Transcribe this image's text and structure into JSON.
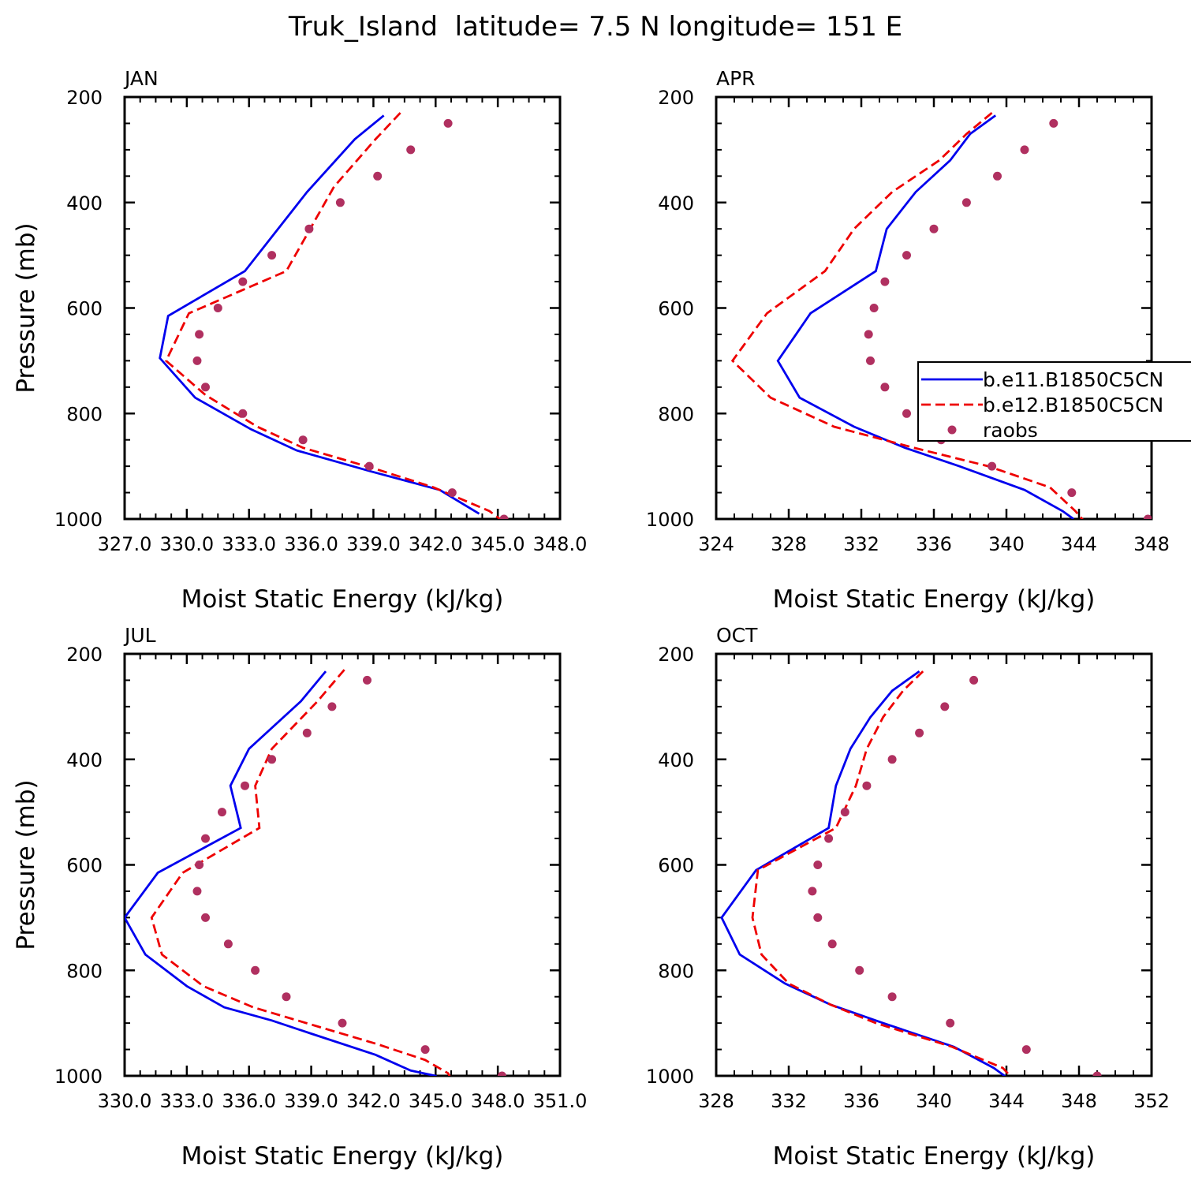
{
  "figure_title": "Truk_Island  latitude= 7.5 N longitude= 151 E",
  "colors": {
    "series_1": "#0000ee",
    "series_2": "#ee0000",
    "raobs": "#b03060",
    "axis": "#000000"
  },
  "legend": {
    "placement": "overlapping right edge of APR panel",
    "entries": [
      {
        "label": "b.e11.B1850C5CN",
        "style": "solid",
        "color": "#0000ee"
      },
      {
        "label": "b.e12.B1850C5CN",
        "style": "dashed",
        "color": "#ee0000"
      },
      {
        "label": "raobs",
        "style": "marker",
        "color": "#b03060"
      }
    ]
  },
  "chart_data": [
    {
      "type": "line",
      "panel": "JAN",
      "xlabel": "Moist Static Energy (kJ/kg)",
      "ylabel": "Pressure (mb)",
      "xlim": [
        327,
        348
      ],
      "ylim": [
        1000,
        200
      ],
      "xticks": [
        "327.0",
        "330.0",
        "333.0",
        "336.0",
        "339.0",
        "342.0",
        "345.0",
        "348.0"
      ],
      "xtick_values": [
        327,
        330,
        333,
        336,
        339,
        342,
        345,
        348
      ],
      "yticks": [
        "200",
        "400",
        "600",
        "800",
        "1000"
      ],
      "ytick_values": [
        200,
        400,
        600,
        800,
        1000
      ],
      "series": [
        {
          "name": "b.e11.B1850C5CN",
          "style": "solid",
          "x": [
            339.5,
            338.1,
            335.8,
            332.8,
            329.1,
            328.7,
            330.4,
            333.1,
            335.3,
            338.9,
            342.2,
            344.1
          ],
          "y": [
            235,
            280,
            380,
            530,
            615,
            695,
            770,
            830,
            870,
            910,
            945,
            990
          ]
        },
        {
          "name": "b.e12.B1850C5CN",
          "style": "dashed",
          "x": [
            340.3,
            339.1,
            337.1,
            334.8,
            330.1,
            329.0,
            330.9,
            333.4,
            335.6,
            339.1,
            341.9,
            344.6,
            345.1
          ],
          "y": [
            230,
            280,
            370,
            530,
            610,
            700,
            765,
            825,
            865,
            905,
            940,
            985,
            1000
          ]
        }
      ],
      "points": {
        "name": "raobs",
        "x": [
          342.6,
          340.8,
          339.2,
          337.4,
          335.9,
          334.1,
          332.7,
          331.5,
          330.6,
          330.5,
          330.9,
          332.7,
          335.6,
          338.8,
          342.8,
          345.3
        ],
        "y": [
          250,
          300,
          350,
          400,
          450,
          500,
          550,
          600,
          650,
          700,
          750,
          800,
          850,
          900,
          950,
          1000
        ]
      }
    },
    {
      "type": "line",
      "panel": "APR",
      "xlabel": "Moist Static Energy (kJ/kg)",
      "ylabel": "",
      "xlim": [
        324,
        348
      ],
      "ylim": [
        1000,
        200
      ],
      "xticks": [
        "324",
        "328",
        "332",
        "336",
        "340",
        "344",
        "348"
      ],
      "xtick_values": [
        324,
        328,
        332,
        336,
        340,
        344,
        348
      ],
      "yticks": [
        "200",
        "400",
        "600",
        "800",
        "1000"
      ],
      "ytick_values": [
        200,
        400,
        600,
        800,
        1000
      ],
      "series": [
        {
          "name": "b.e11.B1850C5CN",
          "style": "solid",
          "x": [
            339.4,
            338.0,
            336.9,
            335.0,
            333.4,
            332.8,
            329.2,
            327.4,
            328.6,
            331.6,
            334.4,
            337.4,
            341.0,
            343.1,
            343.7
          ],
          "y": [
            235,
            270,
            320,
            380,
            450,
            530,
            610,
            700,
            770,
            825,
            865,
            900,
            945,
            985,
            1000
          ]
        },
        {
          "name": "b.e12.B1850C5CN",
          "style": "dashed",
          "x": [
            339.2,
            337.8,
            336.3,
            333.7,
            331.6,
            330.0,
            326.8,
            324.9,
            327.0,
            330.5,
            334.9,
            339.0,
            342.4,
            343.8,
            344.3
          ],
          "y": [
            230,
            270,
            320,
            380,
            450,
            530,
            610,
            700,
            770,
            825,
            865,
            900,
            940,
            985,
            1005
          ]
        }
      ],
      "points": {
        "name": "raobs",
        "x": [
          342.6,
          341.0,
          339.5,
          337.8,
          336.0,
          334.5,
          333.3,
          332.7,
          332.4,
          332.5,
          333.3,
          334.5,
          336.4,
          339.2,
          343.6,
          347.8
        ],
        "y": [
          250,
          300,
          350,
          400,
          450,
          500,
          550,
          600,
          650,
          700,
          750,
          800,
          850,
          900,
          950,
          1000
        ]
      }
    },
    {
      "type": "line",
      "panel": "JUL",
      "xlabel": "Moist Static Energy (kJ/kg)",
      "ylabel": "Pressure (mb)",
      "xlim": [
        330,
        351
      ],
      "ylim": [
        1000,
        200
      ],
      "xticks": [
        "330.0",
        "333.0",
        "336.0",
        "339.0",
        "342.0",
        "345.0",
        "348.0",
        "351.0"
      ],
      "xtick_values": [
        330,
        333,
        336,
        339,
        342,
        345,
        348,
        351
      ],
      "yticks": [
        "200",
        "400",
        "600",
        "800",
        "1000"
      ],
      "ytick_values": [
        200,
        400,
        600,
        800,
        1000
      ],
      "series": [
        {
          "name": "b.e11.B1850C5CN",
          "style": "solid",
          "x": [
            339.7,
            338.5,
            336.0,
            335.1,
            335.6,
            331.6,
            330.0,
            331.0,
            333.0,
            334.8,
            337.1,
            339.0,
            342.1,
            343.8,
            345.0,
            345.2
          ],
          "y": [
            233,
            290,
            380,
            450,
            530,
            615,
            700,
            770,
            830,
            870,
            895,
            920,
            960,
            990,
            1000,
            1010
          ]
        },
        {
          "name": "b.e12.B1850C5CN",
          "style": "dashed",
          "x": [
            340.6,
            339.3,
            337.1,
            336.3,
            336.5,
            332.8,
            331.3,
            331.8,
            333.8,
            336.2,
            339.2,
            342.2,
            344.5,
            345.6,
            345.8
          ],
          "y": [
            230,
            290,
            380,
            450,
            530,
            615,
            700,
            770,
            830,
            870,
            905,
            940,
            970,
            995,
            1010
          ]
        }
      ],
      "points": {
        "name": "raobs",
        "x": [
          341.7,
          340.0,
          338.8,
          337.1,
          335.8,
          334.7,
          333.9,
          333.6,
          333.5,
          333.9,
          335.0,
          336.3,
          337.8,
          340.5,
          344.5,
          348.2
        ],
        "y": [
          250,
          300,
          350,
          400,
          450,
          500,
          550,
          600,
          650,
          700,
          750,
          800,
          850,
          900,
          950,
          1000
        ]
      }
    },
    {
      "type": "line",
      "panel": "OCT",
      "xlabel": "Moist Static Energy (kJ/kg)",
      "ylabel": "",
      "xlim": [
        328,
        352
      ],
      "ylim": [
        1000,
        200
      ],
      "xticks": [
        "328",
        "332",
        "336",
        "340",
        "344",
        "348",
        "352"
      ],
      "xtick_values": [
        328,
        332,
        336,
        340,
        344,
        348,
        352
      ],
      "yticks": [
        "200",
        "400",
        "600",
        "800",
        "1000"
      ],
      "ytick_values": [
        200,
        400,
        600,
        800,
        1000
      ],
      "series": [
        {
          "name": "b.e11.B1850C5CN",
          "style": "solid",
          "x": [
            339.2,
            337.7,
            336.5,
            335.4,
            334.6,
            334.2,
            330.2,
            328.3,
            329.3,
            331.8,
            334.3,
            337.2,
            341.1,
            343.3,
            343.9,
            344.0
          ],
          "y": [
            233,
            270,
            320,
            380,
            450,
            530,
            610,
            700,
            770,
            825,
            865,
            900,
            945,
            985,
            1000,
            1005
          ]
        },
        {
          "name": "b.e12.B1850C5CN",
          "style": "dashed",
          "x": [
            339.4,
            338.3,
            337.2,
            336.3,
            335.7,
            334.6,
            330.3,
            330.0,
            330.5,
            332.0,
            334.3,
            336.8,
            341.0,
            343.8,
            344.2,
            344.3
          ],
          "y": [
            233,
            270,
            320,
            380,
            450,
            530,
            610,
            700,
            770,
            825,
            865,
            900,
            945,
            985,
            1000,
            1008
          ]
        }
      ],
      "points": {
        "name": "raobs",
        "x": [
          342.2,
          340.6,
          339.2,
          337.7,
          336.3,
          335.1,
          334.2,
          333.6,
          333.3,
          333.6,
          334.4,
          335.9,
          337.7,
          340.9,
          345.1,
          349.0
        ],
        "y": [
          250,
          300,
          350,
          400,
          450,
          500,
          550,
          600,
          650,
          700,
          750,
          800,
          850,
          900,
          950,
          1000
        ]
      }
    }
  ]
}
